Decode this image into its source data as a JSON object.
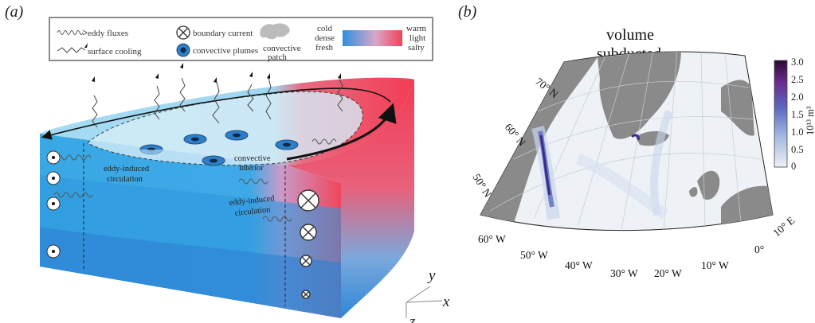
{
  "panel_a": {
    "label": "(a)",
    "legend": {
      "eddy_fluxes": "eddy fluxes",
      "surface_cooling": "surface cooling",
      "boundary_current": "boundary current",
      "convective_plumes": "convective plumes",
      "convective_patch": "convective\npatch",
      "cold": "cold",
      "dense": "dense",
      "fresh": "fresh",
      "warm": "warm",
      "light": "light",
      "salty": "salty"
    },
    "annotations": {
      "eddy_left_1": "eddy-induced",
      "eddy_left_2": "circulation",
      "eddy_right_1": "eddy-induced",
      "eddy_right_2": "circulation",
      "convective_1": "convective",
      "convective_2": "interior"
    },
    "axes": {
      "x": "x",
      "y": "y",
      "z": "z"
    }
  },
  "panel_b": {
    "label": "(b)",
    "title_line1": "volume",
    "title_line2": "subducted",
    "latitudes": [
      "70° N",
      "60° N",
      "50° N"
    ],
    "longitudes": [
      "60° W",
      "50° W",
      "40° W",
      "30° W",
      "20° W",
      "10° W",
      "0°",
      "10° E"
    ],
    "colorbar": {
      "ticks": [
        "3.0",
        "2.5",
        "2.0",
        "1.5",
        "1.0",
        "0.5",
        "0"
      ],
      "unit": "10¹³ m³",
      "colors": [
        "#2a0a33",
        "#6a2a8c",
        "#5b6ac2",
        "#9fb6de",
        "#eef1f5"
      ]
    }
  }
}
